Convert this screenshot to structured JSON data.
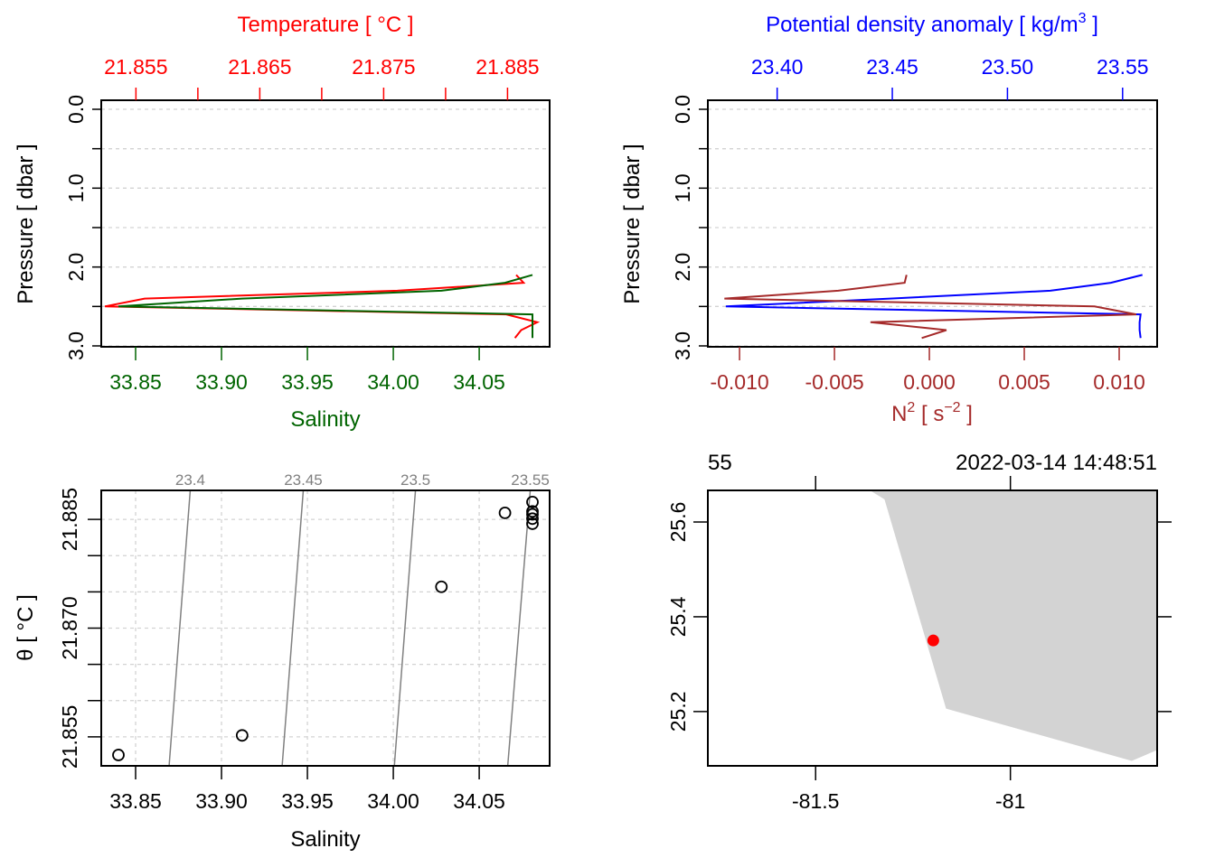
{
  "chart_data": [
    {
      "id": "ts_profile",
      "type": "line",
      "title": "",
      "y_axis": {
        "label": "Pressure [ dbar ]",
        "range": [
          3.0,
          0.0
        ],
        "ticks": [
          0.0,
          0.5,
          1.0,
          1.5,
          2.0,
          2.5,
          3.0
        ],
        "tick_labels": [
          "0.0",
          "",
          "1.0",
          "",
          "2.0",
          "",
          "3.0"
        ],
        "color": "#000000"
      },
      "top_axis": {
        "label": "Temperature [ °C ]",
        "range": [
          21.8522,
          21.8884
        ],
        "ticks": [
          21.855,
          21.86,
          21.865,
          21.87,
          21.875,
          21.88,
          21.885
        ],
        "tick_labels": [
          "21.855",
          "",
          "21.865",
          "",
          "21.875",
          "",
          "21.885"
        ],
        "color": "#ff0000"
      },
      "bottom_axis": {
        "label": "Salinity",
        "range": [
          33.83,
          34.091
        ],
        "ticks": [
          33.85,
          33.9,
          33.95,
          34.0,
          34.05
        ],
        "tick_labels": [
          "33.85",
          "33.90",
          "33.95",
          "34.00",
          "34.05"
        ],
        "color": "#006400"
      },
      "grid": true,
      "series": [
        {
          "name": "Temperature",
          "axis": "top",
          "color": "#ff0000",
          "pressure": [
            2.1,
            2.2,
            2.3,
            2.4,
            2.5,
            2.6,
            2.7,
            2.8,
            2.9
          ],
          "values": [
            21.8857,
            21.8863,
            21.8761,
            21.8557,
            21.8525,
            21.8849,
            21.8874,
            21.8861,
            21.8856
          ]
        },
        {
          "name": "Salinity",
          "axis": "bottom",
          "color": "#006400",
          "pressure": [
            2.1,
            2.2,
            2.3,
            2.4,
            2.5,
            2.6,
            2.7,
            2.8,
            2.9
          ],
          "values": [
            34.081,
            34.065,
            34.028,
            33.912,
            33.84,
            34.081,
            34.081,
            34.081,
            34.081
          ]
        }
      ]
    },
    {
      "id": "density_profile",
      "type": "line",
      "title": "",
      "y_axis": {
        "label": "Pressure [ dbar ]",
        "range": [
          3.0,
          0.0
        ],
        "ticks": [
          0.0,
          0.5,
          1.0,
          1.5,
          2.0,
          2.5,
          3.0
        ],
        "tick_labels": [
          "0.0",
          "",
          "1.0",
          "",
          "2.0",
          "",
          "3.0"
        ],
        "color": "#000000"
      },
      "top_axis": {
        "label": "Potential density anomaly [ kg/m",
        "label_sup": "3",
        "label_end": " ]",
        "range": [
          23.3699,
          23.565
        ],
        "ticks": [
          23.4,
          23.45,
          23.5,
          23.55
        ],
        "tick_labels": [
          "23.40",
          "23.45",
          "23.50",
          "23.55"
        ],
        "color": "#0000ff"
      },
      "bottom_axis": {
        "label": "N",
        "label_sup": "2",
        "label_mid": " [ s",
        "label_sup2": "−2",
        "label_end": " ]",
        "range": [
          -0.01167,
          0.012
        ],
        "ticks": [
          -0.01,
          -0.005,
          0.0,
          0.005,
          0.01
        ],
        "tick_labels": [
          "-0.010",
          "-0.005",
          "0.000",
          "0.005",
          "0.010"
        ],
        "color": "#a52a2a"
      },
      "grid": true,
      "series": [
        {
          "name": "Potential density anomaly",
          "axis": "top",
          "color": "#0000ff",
          "pressure": [
            2.1,
            2.2,
            2.3,
            2.4,
            2.5,
            2.6,
            2.7,
            2.8,
            2.9
          ],
          "values": [
            23.5586,
            23.5449,
            23.5186,
            23.449,
            23.3777,
            23.5578,
            23.5574,
            23.5574,
            23.5578
          ]
        },
        {
          "name": "N2",
          "axis": "bottom",
          "color": "#a52a2a",
          "pressure": [
            2.1,
            2.2,
            2.3,
            2.4,
            2.5,
            2.6,
            2.7,
            2.8,
            2.9
          ],
          "values": [
            -0.0012,
            -0.0013,
            -0.0048,
            -0.0108,
            0.0087,
            0.0109,
            -0.0031,
            0.0009,
            -0.0004
          ]
        }
      ]
    },
    {
      "id": "ts_diagram",
      "type": "scatter",
      "title": "",
      "xlabel": "Salinity",
      "ylabel": "θ [ °C ]",
      "x_range": [
        33.83,
        34.091
      ],
      "y_range": [
        21.851,
        21.889
      ],
      "x_ticks": [
        33.85,
        33.9,
        33.95,
        34.0,
        34.05
      ],
      "x_tick_labels": [
        "33.85",
        "33.90",
        "33.95",
        "34.00",
        "34.05"
      ],
      "y_ticks": [
        21.855,
        21.86,
        21.865,
        21.87,
        21.875,
        21.88,
        21.885
      ],
      "y_tick_labels": [
        "21.855",
        "",
        "",
        "21.870",
        "",
        "",
        "21.885"
      ],
      "grid": true,
      "points": [
        {
          "S": 33.84,
          "theta": 21.8525
        },
        {
          "S": 33.912,
          "theta": 21.8552
        },
        {
          "S": 34.028,
          "theta": 21.8757
        },
        {
          "S": 34.065,
          "theta": 21.8859
        },
        {
          "S": 34.081,
          "theta": 21.8874
        },
        {
          "S": 34.081,
          "theta": 21.8857
        },
        {
          "S": 34.081,
          "theta": 21.8851
        },
        {
          "S": 34.081,
          "theta": 21.8844
        },
        {
          "S": 34.081,
          "theta": 21.8861
        }
      ],
      "isopycnals": [
        {
          "label": "23.4",
          "top_S": 33.8818,
          "bottom_S": 33.8695
        },
        {
          "label": "23.45",
          "top_S": 33.9476,
          "bottom_S": 33.9353
        },
        {
          "label": "23.5",
          "top_S": 34.0129,
          "bottom_S": 34.0006
        },
        {
          "label": "23.55",
          "top_S": 34.0797,
          "bottom_S": 34.0666
        }
      ],
      "isopycnal_color": "#808080"
    },
    {
      "id": "station_map",
      "type": "scatter",
      "title": "",
      "header_left": "55",
      "header_right": "2022-03-14 14:48:51",
      "x_range": [
        -81.7767,
        -80.6233
      ],
      "y_range": [
        25.0854,
        25.6667
      ],
      "x_ticks": [
        -81.5,
        -81.0
      ],
      "x_tick_labels": [
        "-81.5",
        "-81"
      ],
      "y_ticks": [
        25.2,
        25.4,
        25.6
      ],
      "y_tick_labels": [
        "25.2",
        "25.4",
        "25.6"
      ],
      "land_color": "#d3d3d3",
      "coastline": [
        [
          -81.3605,
          25.6667
        ],
        [
          -81.3233,
          25.6479
        ],
        [
          -81.1651,
          25.2063
        ],
        [
          -80.6884,
          25.0958
        ],
        [
          -80.6233,
          25.1188
        ],
        [
          -80.6233,
          25.6667
        ]
      ],
      "station": {
        "lon": -81.198,
        "lat": 25.35,
        "color": "#ff0000"
      }
    }
  ]
}
